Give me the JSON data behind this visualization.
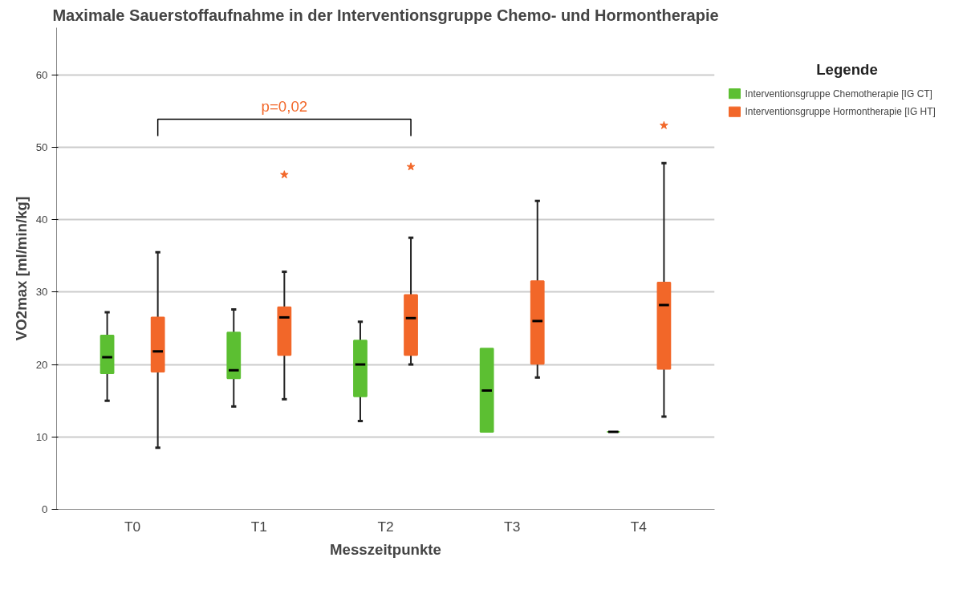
{
  "chart_data": {
    "type": "box",
    "title": "Maximale Sauerstoffaufnahme in der Interventionsgruppe Chemo- und Hormontherapie",
    "xlabel": "Messzeitpunkte",
    "ylabel": "VO2max [ml/min/kg]",
    "legend_title": "Legende",
    "categories": [
      "T0",
      "T1",
      "T2",
      "T3",
      "T4"
    ],
    "series": [
      {
        "name": "Interventionsgruppe Chemotherapie [IG CT]",
        "color": "#5cbf32",
        "boxes": [
          {
            "low": 15.0,
            "q1": 18.8,
            "median": 21.0,
            "q3": 24.0,
            "high": 27.2
          },
          {
            "low": 14.2,
            "q1": 18.1,
            "median": 19.2,
            "q3": 24.4,
            "high": 27.6
          },
          {
            "low": 12.2,
            "q1": 15.6,
            "median": 20.0,
            "q3": 23.3,
            "high": 25.9
          },
          {
            "low": 10.7,
            "q1": 10.7,
            "median": 16.4,
            "q3": 22.2,
            "high": 22.2
          },
          {
            "low": 10.7,
            "q1": 10.7,
            "median": 10.7,
            "q3": 10.7,
            "high": 10.7
          }
        ]
      },
      {
        "name": "Interventionsgruppe Hormontherapie [IG HT]",
        "color": "#f26729",
        "boxes": [
          {
            "low": 8.5,
            "q1": 19.0,
            "median": 21.8,
            "q3": 26.5,
            "high": 35.5
          },
          {
            "low": 15.2,
            "q1": 21.3,
            "median": 26.5,
            "q3": 27.9,
            "high": 32.8,
            "outliers": [
              46.2
            ]
          },
          {
            "low": 20.0,
            "q1": 21.3,
            "median": 26.4,
            "q3": 29.6,
            "high": 37.5,
            "outliers": [
              47.3
            ]
          },
          {
            "low": 18.2,
            "q1": 20.1,
            "median": 26.0,
            "q3": 31.5,
            "high": 42.6
          },
          {
            "low": 12.8,
            "q1": 19.4,
            "median": 28.2,
            "q3": 31.3,
            "high": 47.8,
            "outliers": [
              53.0
            ]
          }
        ]
      }
    ],
    "ylim": [
      0,
      66.5
    ],
    "yticks": [
      0,
      10,
      20,
      30,
      40,
      50,
      60
    ],
    "grid": "y",
    "legend": "right",
    "marker": "star",
    "annotations": [
      "p=0,02"
    ]
  }
}
